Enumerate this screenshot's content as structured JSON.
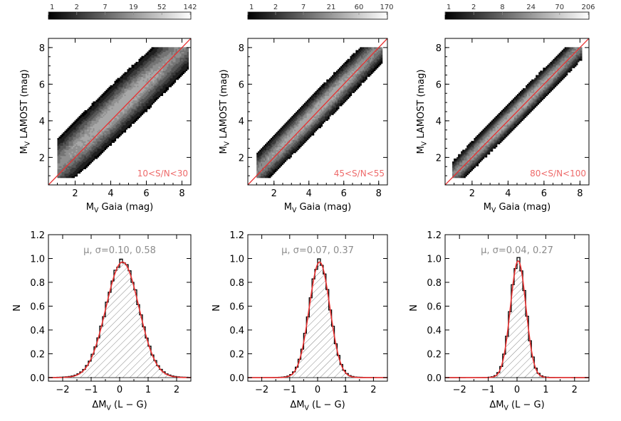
{
  "chart_data": [
    {
      "type": "heatmap",
      "panel": "top-left",
      "subtype": "2D density with contours and 1:1 line",
      "xlabel": "M_V Gaia (mag)",
      "ylabel": "M_V LAMOST (mag)",
      "xlim": [
        0.5,
        8.5
      ],
      "ylim": [
        0.5,
        8.5
      ],
      "xticks": [
        2,
        4,
        6,
        8
      ],
      "yticks": [
        2,
        4,
        6,
        8
      ],
      "annotation": "10<S/N<30",
      "colorbar_ticks": [
        "1",
        "2",
        "7",
        "19",
        "52",
        "142"
      ],
      "density": {
        "slope": 0.92,
        "intercept": 0.62,
        "sigma_across": 0.62,
        "x_range": [
          1.0,
          8.3
        ],
        "y_cap": 8.0
      },
      "one_to_one_line": true
    },
    {
      "type": "heatmap",
      "panel": "top-middle",
      "subtype": "2D density with contours and 1:1 line",
      "xlabel": "M_V Gaia (mag)",
      "ylabel": "M_V LAMOST (mag)",
      "xlim": [
        0.5,
        8.5
      ],
      "ylim": [
        0.5,
        8.5
      ],
      "xticks": [
        2,
        4,
        6,
        8
      ],
      "yticks": [
        2,
        4,
        6,
        8
      ],
      "annotation": "45<S/N<55",
      "colorbar_ticks": [
        "1",
        "2",
        "7",
        "21",
        "60",
        "170"
      ],
      "density": {
        "slope": 0.97,
        "intercept": 0.25,
        "sigma_across": 0.42,
        "x_range": [
          1.0,
          8.2
        ],
        "y_cap": 8.0
      },
      "one_to_one_line": true
    },
    {
      "type": "heatmap",
      "panel": "top-right",
      "subtype": "2D density with contours and 1:1 line",
      "xlabel": "M_V Gaia (mag)",
      "ylabel": "M_V LAMOST (mag)",
      "xlim": [
        0.5,
        8.5
      ],
      "ylim": [
        0.5,
        8.5
      ],
      "xticks": [
        2,
        4,
        6,
        8
      ],
      "yticks": [
        2,
        4,
        6,
        8
      ],
      "annotation": "80<S/N<100",
      "colorbar_ticks": [
        "1",
        "2",
        "8",
        "24",
        "70",
        "206"
      ],
      "density": {
        "slope": 0.99,
        "intercept": 0.12,
        "sigma_across": 0.32,
        "x_range": [
          0.9,
          8.1
        ],
        "y_cap": 8.0
      },
      "one_to_one_line": true
    },
    {
      "type": "bar",
      "panel": "bottom-left",
      "subtype": "normalized histogram with gaussian fit",
      "xlabel": "ΔM_V (L − G)",
      "ylabel": "N",
      "xlim": [
        -2.5,
        2.5
      ],
      "ylim": [
        -0.03,
        1.2
      ],
      "xticks": [
        -2,
        -1,
        0,
        1,
        2
      ],
      "yticks": [
        0.0,
        0.2,
        0.4,
        0.6,
        0.8,
        1.0,
        1.2
      ],
      "annotation": "μ, σ=0.10, 0.58",
      "gaussian_fit": {
        "mu": 0.1,
        "sigma": 0.58,
        "amplitude": 0.97
      },
      "bin_width": 0.1
    },
    {
      "type": "bar",
      "panel": "bottom-middle",
      "subtype": "normalized histogram with gaussian fit",
      "xlabel": "ΔM_V (L − G)",
      "ylabel": "N",
      "xlim": [
        -2.5,
        2.5
      ],
      "ylim": [
        -0.03,
        1.2
      ],
      "xticks": [
        -2,
        -1,
        0,
        1,
        2
      ],
      "yticks": [
        0.0,
        0.2,
        0.4,
        0.6,
        0.8,
        1.0,
        1.2
      ],
      "annotation": "μ, σ=0.07, 0.37",
      "gaussian_fit": {
        "mu": 0.07,
        "sigma": 0.37,
        "amplitude": 0.97
      },
      "bin_width": 0.1
    },
    {
      "type": "bar",
      "panel": "bottom-right",
      "subtype": "normalized histogram with gaussian fit",
      "xlabel": "ΔM_V (L − G)",
      "ylabel": "N",
      "xlim": [
        -2.5,
        2.5
      ],
      "ylim": [
        -0.03,
        1.2
      ],
      "xticks": [
        -2,
        -1,
        0,
        1,
        2
      ],
      "yticks": [
        0.0,
        0.2,
        0.4,
        0.6,
        0.8,
        1.0,
        1.2
      ],
      "annotation": "μ, σ=0.04, 0.27",
      "gaussian_fit": {
        "mu": 0.04,
        "sigma": 0.27,
        "amplitude": 0.98
      },
      "bin_width": 0.1
    }
  ],
  "colors": {
    "fit_line": "#e83030",
    "annotation_red": "#ee6a6a",
    "annotation_gray": "#8c8c8c",
    "axes": "#000000",
    "hatch": "#555555"
  }
}
